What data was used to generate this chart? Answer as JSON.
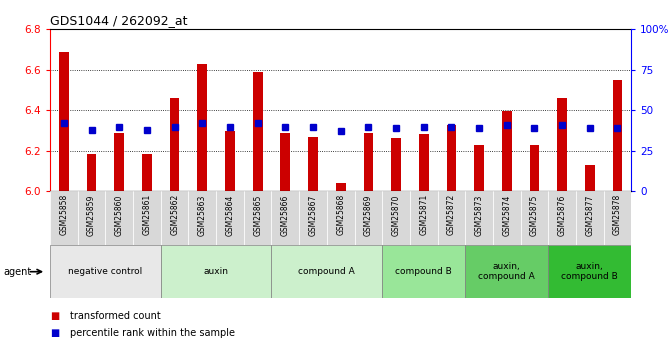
{
  "title": "GDS1044 / 262092_at",
  "samples": [
    "GSM25858",
    "GSM25859",
    "GSM25860",
    "GSM25861",
    "GSM25862",
    "GSM25863",
    "GSM25864",
    "GSM25865",
    "GSM25866",
    "GSM25867",
    "GSM25868",
    "GSM25869",
    "GSM25870",
    "GSM25871",
    "GSM25872",
    "GSM25873",
    "GSM25874",
    "GSM25875",
    "GSM25876",
    "GSM25877",
    "GSM25878"
  ],
  "transformed_count": [
    6.69,
    6.185,
    6.29,
    6.185,
    6.46,
    6.63,
    6.3,
    6.59,
    6.29,
    6.27,
    6.04,
    6.29,
    6.265,
    6.285,
    6.33,
    6.23,
    6.395,
    6.23,
    6.46,
    6.13,
    6.55
  ],
  "percentile_rank": [
    42,
    38,
    40,
    38,
    40,
    42,
    40,
    42,
    40,
    40,
    37,
    40,
    39,
    40,
    40,
    39,
    41,
    39,
    41,
    39,
    39
  ],
  "groups": [
    {
      "label": "negative control",
      "start": 0,
      "end": 3,
      "color": "#e8e8e8"
    },
    {
      "label": "auxin",
      "start": 4,
      "end": 7,
      "color": "#ccf0cc"
    },
    {
      "label": "compound A",
      "start": 8,
      "end": 11,
      "color": "#ccf0cc"
    },
    {
      "label": "compound B",
      "start": 12,
      "end": 14,
      "color": "#99e699"
    },
    {
      "label": "auxin,\ncompound A",
      "start": 15,
      "end": 17,
      "color": "#66cc66"
    },
    {
      "label": "auxin,\ncompound B",
      "start": 18,
      "end": 20,
      "color": "#33bb33"
    }
  ],
  "ylim_left": [
    6.0,
    6.8
  ],
  "ylim_right": [
    0,
    100
  ],
  "yticks_left": [
    6.0,
    6.2,
    6.4,
    6.6,
    6.8
  ],
  "yticks_right": [
    0,
    25,
    50,
    75,
    100
  ],
  "bar_color": "#cc0000",
  "dot_color": "#0000cc",
  "bar_width": 0.35,
  "legend_items": [
    "transformed count",
    "percentile rank within the sample"
  ],
  "legend_colors": [
    "#cc0000",
    "#0000cc"
  ],
  "background_color": "#ffffff",
  "plot_bg_color": "#ffffff",
  "grid_lines": [
    6.2,
    6.4,
    6.6
  ],
  "tick_label_bg": "#d8d8d8"
}
